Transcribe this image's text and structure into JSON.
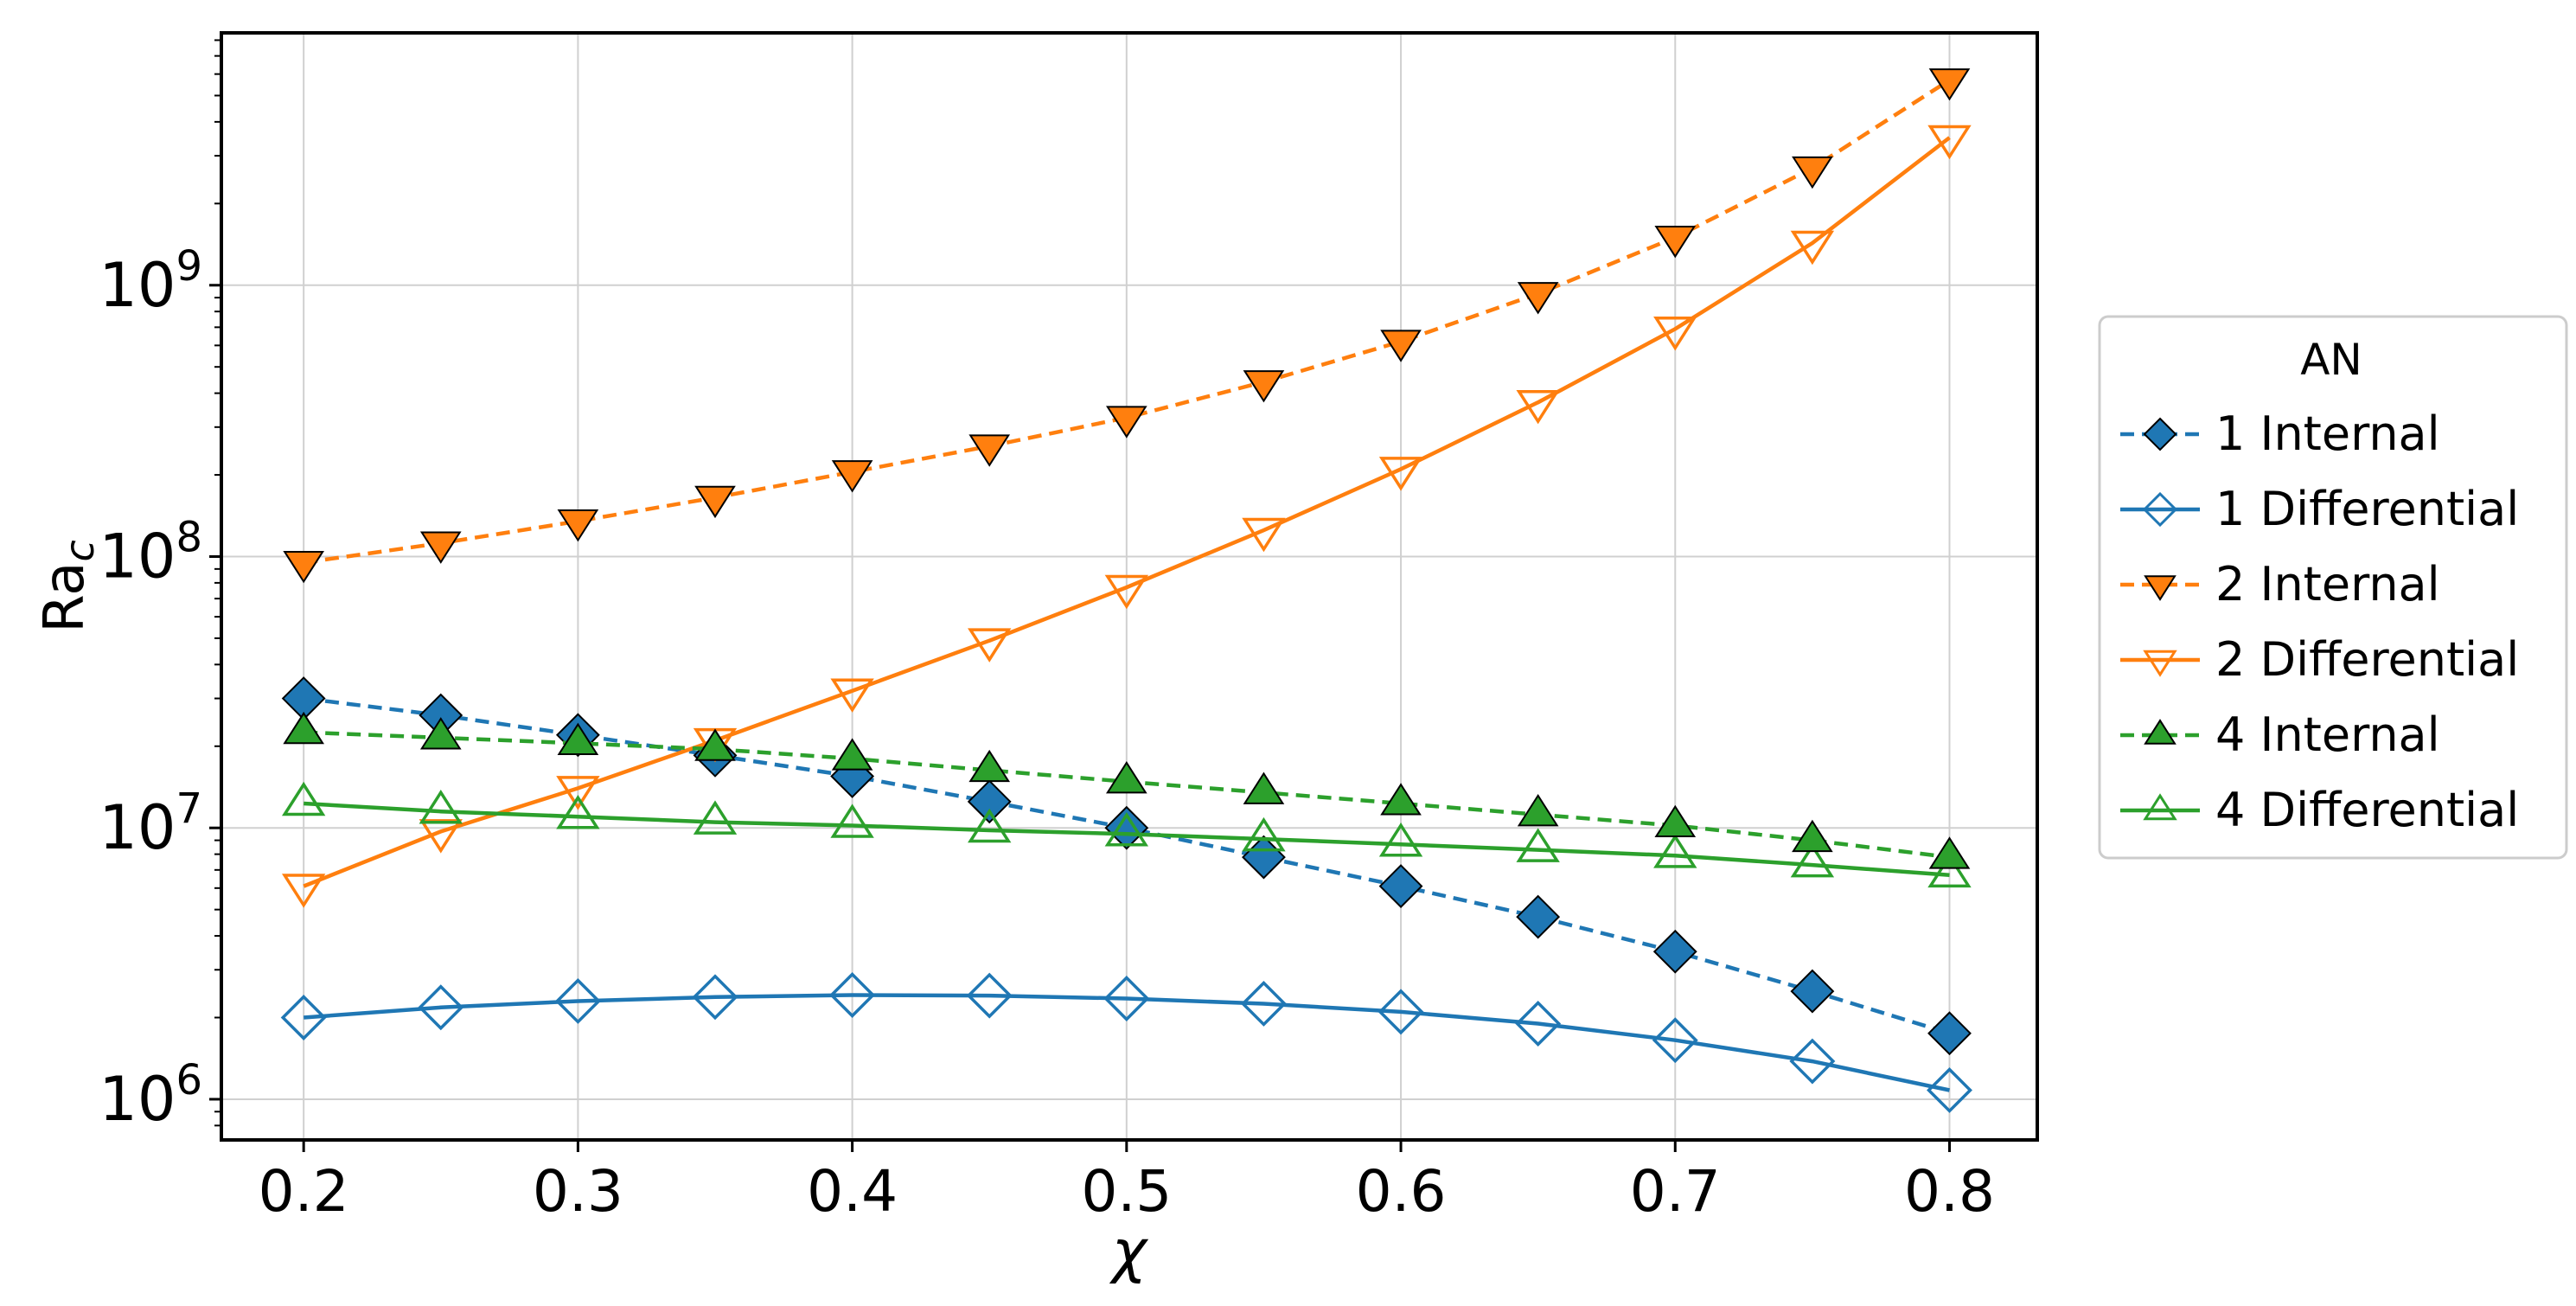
{
  "chart_data": {
    "type": "line",
    "title": "",
    "xlabel": "χ",
    "ylabel_base": "Ra",
    "ylabel_sub": "c",
    "yscale": "log",
    "grid": true,
    "xlim": [
      0.17,
      0.832
    ],
    "ylim_log10": [
      5.85,
      9.93
    ],
    "x_ticks": [
      0.2,
      0.3,
      0.4,
      0.5,
      0.6,
      0.7,
      0.8
    ],
    "x_tick_labels": [
      "0.2",
      "0.3",
      "0.4",
      "0.5",
      "0.6",
      "0.7",
      "0.8"
    ],
    "y_ticks_log10": [
      6,
      7,
      8,
      9
    ],
    "y_tick_bases": [
      "10",
      "10",
      "10",
      "10"
    ],
    "y_tick_exponents": [
      "6",
      "7",
      "8",
      "9"
    ],
    "legend": {
      "title": "AN",
      "placement": "center-right outside"
    },
    "x": [
      0.2,
      0.25,
      0.3,
      0.35,
      0.4,
      0.45,
      0.5,
      0.55,
      0.6,
      0.65,
      0.7,
      0.75,
      0.8
    ],
    "series": [
      {
        "name": "1 Internal",
        "color": "#1f77b4",
        "marker": "diamond",
        "filled": true,
        "dashed": true,
        "values": [
          30000000,
          26000000,
          22000000,
          18500000,
          15500000,
          12500000,
          10000000,
          7800000,
          6100000,
          4700000,
          3500000,
          2500000,
          1750000
        ]
      },
      {
        "name": "1 Differential",
        "color": "#1f77b4",
        "marker": "diamond",
        "filled": false,
        "dashed": false,
        "values": [
          2000000,
          2180000,
          2300000,
          2380000,
          2420000,
          2410000,
          2350000,
          2250000,
          2100000,
          1900000,
          1650000,
          1380000,
          1080000
        ]
      },
      {
        "name": "2 Internal",
        "color": "#ff7f0e",
        "marker": "triangle-down",
        "filled": true,
        "dashed": true,
        "values": [
          95000000,
          112000000,
          135000000,
          165000000,
          205000000,
          255000000,
          325000000,
          440000000,
          620000000,
          930000000,
          1500000000,
          2700000000,
          5700000000
        ]
      },
      {
        "name": "2 Differential",
        "color": "#ff7f0e",
        "marker": "triangle-down",
        "filled": false,
        "dashed": false,
        "values": [
          6100000,
          9700000,
          14000000,
          21000000,
          32000000,
          49000000,
          77000000,
          125000000,
          210000000,
          370000000,
          690000000,
          1430000000,
          3500000000
        ]
      },
      {
        "name": "4 Internal",
        "color": "#2ca02c",
        "marker": "triangle-up",
        "filled": true,
        "dashed": true,
        "values": [
          22500000,
          21500000,
          20500000,
          19500000,
          18000000,
          16300000,
          14800000,
          13500000,
          12300000,
          11200000,
          10200000,
          9000000,
          7800000
        ]
      },
      {
        "name": "4 Differential",
        "color": "#2ca02c",
        "marker": "triangle-up",
        "filled": false,
        "dashed": false,
        "values": [
          12300000,
          11500000,
          11000000,
          10500000,
          10200000,
          9800000,
          9500000,
          9100000,
          8700000,
          8300000,
          7900000,
          7300000,
          6700000
        ]
      }
    ]
  }
}
